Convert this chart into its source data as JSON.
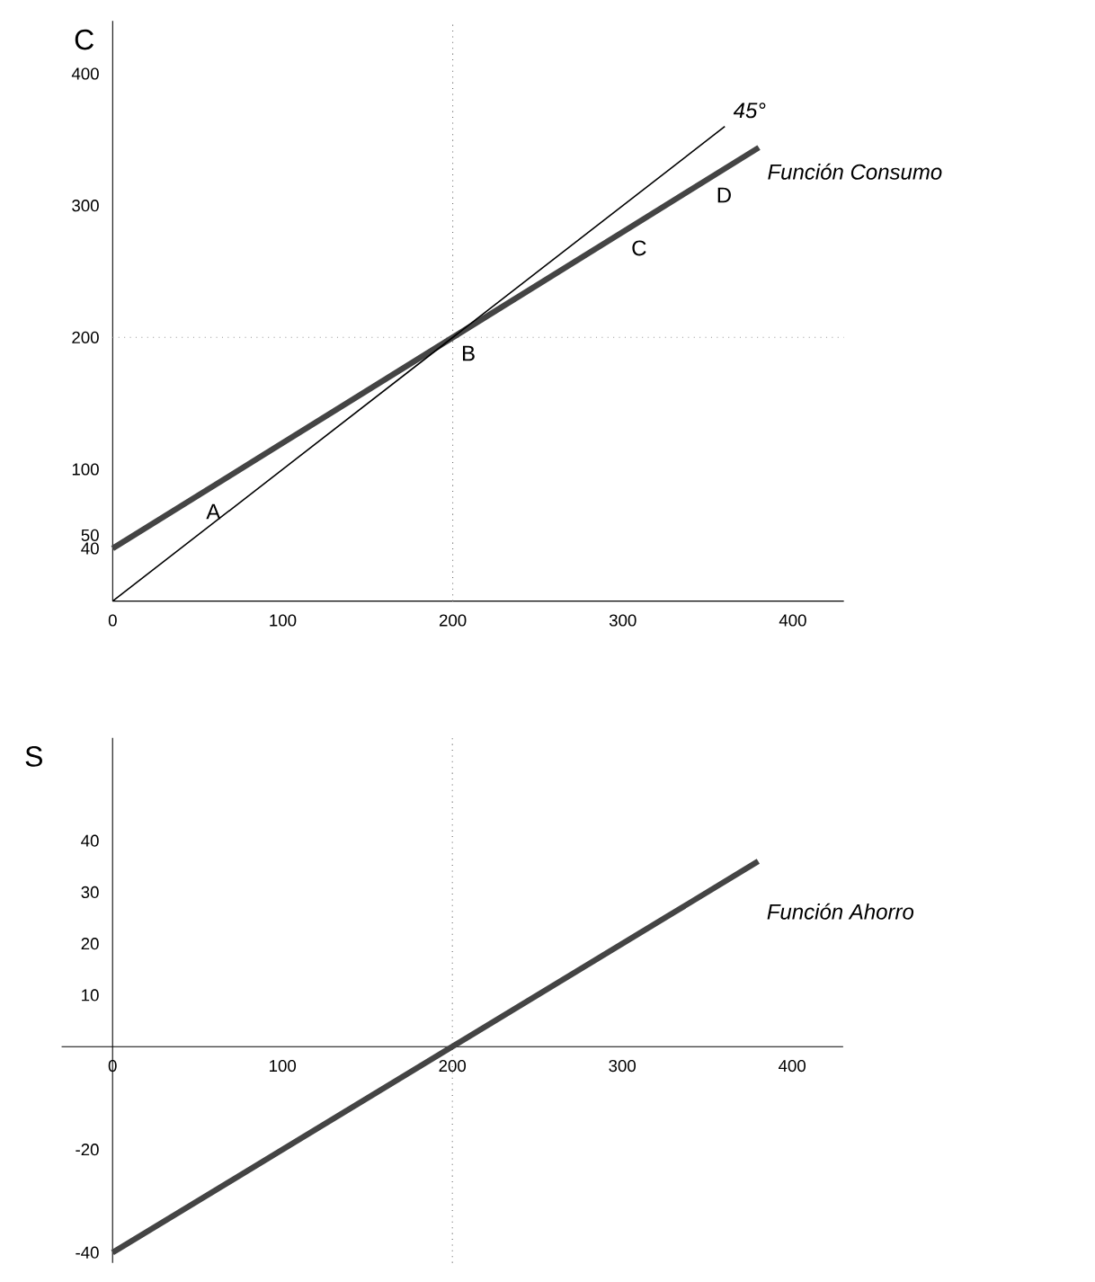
{
  "chart_data": [
    {
      "type": "line",
      "ylabel": "C",
      "xlim": [
        0,
        430
      ],
      "ylim": [
        0,
        440
      ],
      "xticks": [
        0,
        100,
        200,
        300,
        400
      ],
      "yticks": [
        40,
        50,
        100,
        200,
        300,
        400
      ],
      "series": [
        {
          "name": "Función Consumo",
          "color": "#444444",
          "x": [
            0,
            380
          ],
          "values": [
            40,
            344
          ]
        },
        {
          "name": "45°",
          "color": "#000000",
          "x": [
            0,
            360
          ],
          "values": [
            0,
            360
          ]
        }
      ],
      "ref_lines": [
        {
          "axis": "y",
          "value": 200,
          "color": "#999999",
          "line_style": "dotted"
        },
        {
          "axis": "x",
          "value": 200,
          "color": "#666666",
          "line_style": "dotted"
        }
      ],
      "annotations": [
        {
          "text": "A",
          "x": 50,
          "y": 80
        },
        {
          "text": "B",
          "x": 200,
          "y": 200
        },
        {
          "text": "C",
          "x": 300,
          "y": 280
        },
        {
          "text": "D",
          "x": 350,
          "y": 320
        }
      ]
    },
    {
      "type": "line",
      "ylabel": "S",
      "xlim": [
        -30,
        430
      ],
      "ylim": [
        -42,
        60
      ],
      "xticks": [
        0,
        100,
        200,
        300,
        400
      ],
      "yticks": [
        -40,
        -20,
        10,
        20,
        30,
        40
      ],
      "series": [
        {
          "name": "Función Ahorro",
          "color": "#444444",
          "x": [
            0,
            380
          ],
          "values": [
            -40,
            36
          ]
        }
      ],
      "ref_lines": [
        {
          "axis": "x",
          "value": 200,
          "color": "#666666",
          "line_style": "dotted"
        }
      ]
    }
  ]
}
